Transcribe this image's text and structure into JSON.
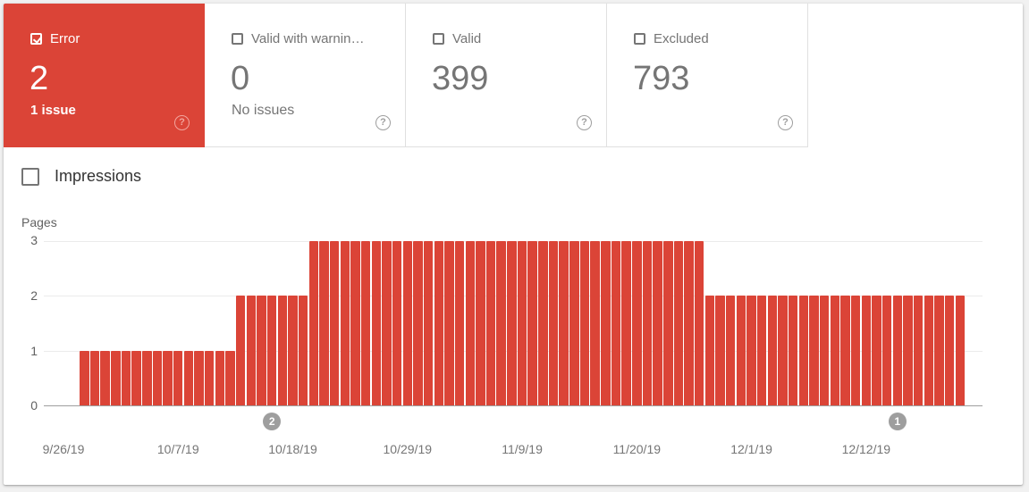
{
  "tiles": [
    {
      "label": "Error",
      "value": "2",
      "sub": "1 issue",
      "checked": true,
      "help": "?"
    },
    {
      "label": "Valid with warnin…",
      "value": "0",
      "sub": "No issues",
      "checked": false,
      "help": "?"
    },
    {
      "label": "Valid",
      "value": "399",
      "sub": "",
      "checked": false,
      "help": "?"
    },
    {
      "label": "Excluded",
      "value": "793",
      "sub": "",
      "checked": false,
      "help": "?"
    }
  ],
  "impressions_label": "Impressions",
  "colors": {
    "error": "#db4437",
    "marker": "#9e9e9e"
  },
  "chart_data": {
    "type": "bar",
    "title": "",
    "ylabel": "Pages",
    "xlabel": "",
    "ylim": [
      0,
      3
    ],
    "yticks": [
      "0",
      "1",
      "2",
      "3"
    ],
    "xticks": [
      "9/26/19",
      "10/7/19",
      "10/18/19",
      "10/29/19",
      "11/9/19",
      "11/20/19",
      "12/1/19",
      "12/12/19"
    ],
    "x_start": "9/28/19",
    "x_end": "12/21/19",
    "series": [
      {
        "name": "Error",
        "color": "#db4437"
      }
    ],
    "segments": [
      {
        "from": "9/28/19",
        "to": "10/12/19",
        "days": 15,
        "value": 1
      },
      {
        "from": "10/13/19",
        "to": "10/19/19",
        "days": 7,
        "value": 2
      },
      {
        "from": "10/20/19",
        "to": "11/26/19",
        "days": 38,
        "value": 3
      },
      {
        "from": "11/27/19",
        "to": "12/21/19",
        "days": 25,
        "value": 2
      }
    ],
    "annotations": [
      {
        "label": "2",
        "date": "10/16/19"
      },
      {
        "label": "1",
        "date": "12/15/19"
      }
    ],
    "grid": true,
    "legend": "none"
  }
}
